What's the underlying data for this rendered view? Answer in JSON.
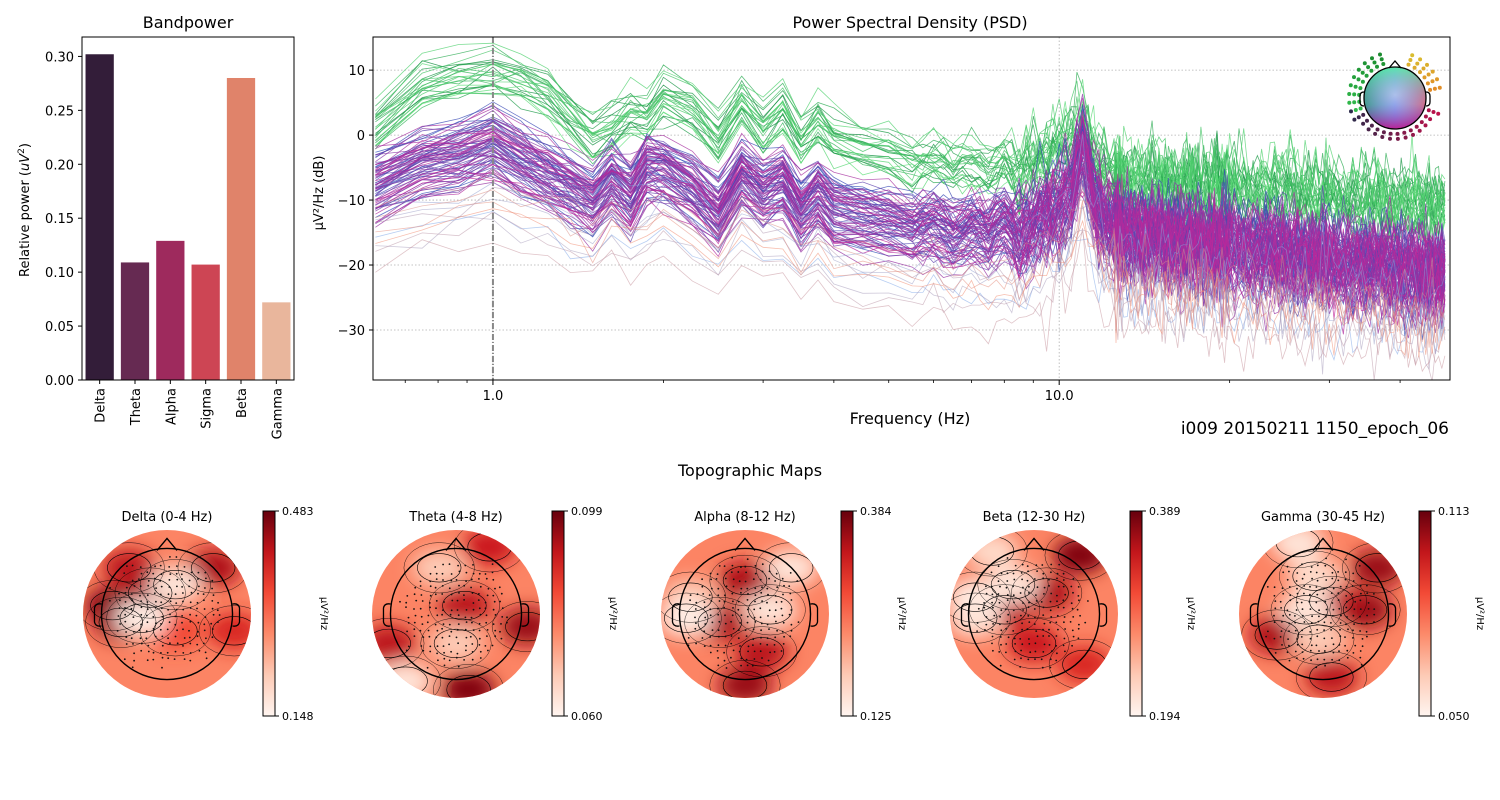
{
  "chart_data": [
    {
      "id": "bandpower",
      "type": "bar",
      "title": "Bandpower",
      "xlabel": "",
      "ylabel": "Relative power (uV²)",
      "categories": [
        "Delta",
        "Theta",
        "Alpha",
        "Sigma",
        "Beta",
        "Gamma"
      ],
      "values": [
        0.302,
        0.109,
        0.129,
        0.107,
        0.28,
        0.072
      ],
      "colors": [
        "#331d39",
        "#662a52",
        "#9e2a5d",
        "#cd4554",
        "#e0836a",
        "#e9b69c"
      ],
      "ylim": [
        0,
        0.318
      ],
      "yticks": [
        0.0,
        0.05,
        0.1,
        0.15,
        0.2,
        0.25,
        0.3
      ],
      "ytick_labels": [
        "0.00",
        "0.05",
        "0.10",
        "0.15",
        "0.20",
        "0.25",
        "0.30"
      ],
      "grid": false
    },
    {
      "id": "psd",
      "type": "line",
      "title": "Power Spectral Density (PSD)",
      "xlabel": "Frequency (Hz)",
      "ylabel": "µV²/Hz (dB)",
      "xscale": "log",
      "xlim": [
        0.614,
        49
      ],
      "ylim": [
        -37.7,
        15.1
      ],
      "xticks": [
        1.0,
        10.0
      ],
      "xtick_labels": [
        "1.0",
        "10.0"
      ],
      "xminor_ticks": [
        0.7,
        0.8,
        0.9,
        2,
        3,
        4,
        5,
        6,
        7,
        8,
        9,
        20,
        30,
        40
      ],
      "yticks": [
        10,
        0,
        -10,
        -20,
        -30
      ],
      "ytick_labels": [
        "10",
        "0",
        "−10",
        "−20",
        "−30"
      ],
      "grid": true,
      "vline_hz": 1.0,
      "legend": "sensor-position inset, top-right",
      "annotation": "i009 20150211 1150_epoch_06",
      "x": [
        0.62,
        0.75,
        0.87,
        1.0,
        1.12,
        1.25,
        1.37,
        1.5,
        1.62,
        1.75,
        1.87,
        2.0,
        2.25,
        2.5,
        2.75,
        3.0,
        3.25,
        3.5,
        3.75,
        4.0,
        4.5,
        5.0,
        5.5,
        6.0,
        6.5,
        7.0,
        7.5,
        8.0,
        8.5,
        9.0,
        9.5,
        10.0,
        10.5,
        11.0,
        11.5,
        12.0,
        12.5,
        13.0,
        14.0,
        15.0,
        16.0,
        17.0,
        18.0,
        19.0,
        20.0,
        22.0,
        24.0,
        26.0,
        28.0,
        30.0,
        33.0,
        36.0,
        39.0,
        42.0,
        45.0,
        48.0
      ],
      "series": [
        {
          "name": "left-frontal (green)",
          "color_range": [
            "#0b8a3a",
            "#5fe07a"
          ],
          "count": 26,
          "spread": 2.2,
          "values": [
            0.5,
            6.5,
            8.0,
            8.8,
            7.5,
            5.5,
            2.0,
            -1.5,
            0.0,
            2.5,
            2.0,
            5.0,
            3.0,
            -1.5,
            4.0,
            0.0,
            3.5,
            -2.0,
            1.0,
            -1.5,
            -3.0,
            -3.5,
            -5.0,
            -4.5,
            -6.0,
            -5.0,
            -6.5,
            -4.5,
            -7.0,
            -5.5,
            -4.0,
            -3.0,
            -2.5,
            1.5,
            -4.0,
            -6.0,
            -7.0,
            -7.5,
            -8.0,
            -7.5,
            -8.5,
            -8.0,
            -9.0,
            -8.5,
            -9.0,
            -10.0,
            -9.0,
            -10.0,
            -10.5,
            -10.0,
            -11.0,
            -10.5,
            -11.5,
            -11.0,
            -12.0,
            -11.5
          ]
        },
        {
          "name": "central/posterior (blue-purple-magenta)",
          "color_range": [
            "#2a4fb8",
            "#c0279a"
          ],
          "count": 80,
          "spread": 3.0,
          "values": [
            -7.5,
            -4.0,
            -3.0,
            -1.0,
            -3.5,
            -6.0,
            -8.0,
            -10.0,
            -6.5,
            -9.5,
            -5.0,
            -5.0,
            -8.0,
            -12.0,
            -5.5,
            -8.5,
            -7.0,
            -11.5,
            -9.0,
            -11.5,
            -12.5,
            -13.0,
            -14.0,
            -13.5,
            -15.0,
            -14.0,
            -15.0,
            -13.0,
            -15.5,
            -13.5,
            -12.0,
            -11.0,
            -9.0,
            -1.5,
            -9.0,
            -13.0,
            -14.0,
            -15.0,
            -16.0,
            -15.5,
            -16.5,
            -16.0,
            -17.5,
            -17.0,
            -17.0,
            -18.0,
            -17.5,
            -18.5,
            -19.0,
            -19.0,
            -20.0,
            -19.5,
            -20.5,
            -21.0,
            -21.5,
            -21.0
          ]
        },
        {
          "name": "temporal outliers (light blue / salmon)",
          "color_range": [
            "#7ea6e8",
            "#f08a70"
          ],
          "count": 12,
          "spread": 3.5,
          "values": [
            -15.0,
            -13.5,
            -12.5,
            -10.5,
            -12.5,
            -13.5,
            -16.0,
            -17.5,
            -14.0,
            -16.5,
            -15.0,
            -13.5,
            -17.0,
            -19.0,
            -14.0,
            -16.5,
            -17.0,
            -20.0,
            -18.0,
            -20.5,
            -21.5,
            -22.0,
            -23.5,
            -22.0,
            -24.0,
            -23.0,
            -24.5,
            -23.0,
            -25.0,
            -23.0,
            -21.0,
            -19.0,
            -17.0,
            -10.0,
            -19.0,
            -22.0,
            -23.0,
            -24.0,
            -25.0,
            -24.5,
            -25.5,
            -25.0,
            -26.0,
            -25.5,
            -26.0,
            -27.0,
            -26.5,
            -27.0,
            -28.0,
            -27.5,
            -28.0,
            -28.5,
            -29.0,
            -29.5,
            -30.0,
            -29.0
          ]
        }
      ]
    },
    {
      "id": "topomaps",
      "type": "heatmap",
      "title": "Topographic Maps",
      "colormap": "Reds",
      "colorbar_label": "µV²/Hz",
      "maps": [
        {
          "title": "Delta (0-4 Hz)",
          "vmin": 0.148,
          "vmax": 0.483,
          "vmin_label": "0.148",
          "vmax_label": "0.483",
          "hotspots": [
            [
              -0.65,
              0.1,
              0.95
            ],
            [
              -0.45,
              0.55,
              0.8
            ],
            [
              0.55,
              0.55,
              0.85
            ],
            [
              0.1,
              -0.2,
              0.6
            ],
            [
              -0.55,
              -0.1,
              0.9
            ],
            [
              0.8,
              -0.2,
              0.7
            ],
            [
              -0.2,
              0.25,
              0.85
            ],
            [
              0.1,
              0.35,
              0.1
            ],
            [
              -0.3,
              -0.05,
              0.05
            ]
          ]
        },
        {
          "title": "Theta (4-8 Hz)",
          "vmin": 0.06,
          "vmax": 0.099,
          "vmin_label": "0.060",
          "vmax_label": "0.099",
          "hotspots": [
            [
              0.1,
              0.1,
              0.8
            ],
            [
              0.85,
              -0.15,
              0.9
            ],
            [
              0.15,
              -0.9,
              0.95
            ],
            [
              -0.8,
              -0.35,
              0.8
            ],
            [
              0.4,
              0.8,
              0.75
            ],
            [
              -0.6,
              -0.8,
              0.1
            ],
            [
              0.0,
              -0.35,
              0.2
            ],
            [
              -0.2,
              0.55,
              0.2
            ]
          ]
        },
        {
          "title": "Alpha (8-12 Hz)",
          "vmin": 0.125,
          "vmax": 0.384,
          "vmin_label": "0.125",
          "vmax_label": "0.384",
          "hotspots": [
            [
              0.0,
              0.4,
              0.85
            ],
            [
              -0.3,
              -0.1,
              0.85
            ],
            [
              0.2,
              -0.45,
              0.8
            ],
            [
              0.0,
              -0.85,
              0.9
            ],
            [
              0.3,
              0.05,
              0.1
            ],
            [
              -0.65,
              0.2,
              0.2
            ],
            [
              -0.7,
              -0.05,
              0.05
            ],
            [
              0.55,
              0.55,
              0.1
            ]
          ]
        },
        {
          "title": "Beta (12-30 Hz)",
          "vmin": 0.194,
          "vmax": 0.389,
          "vmin_label": "0.194",
          "vmax_label": "0.389",
          "hotspots": [
            [
              0.55,
              0.7,
              0.95
            ],
            [
              0.15,
              0.25,
              0.85
            ],
            [
              0.0,
              -0.35,
              0.75
            ],
            [
              -0.35,
              0.05,
              0.8
            ],
            [
              -0.7,
              0.2,
              0.05
            ],
            [
              -0.7,
              -0.05,
              0.1
            ],
            [
              -0.25,
              0.35,
              0.1
            ],
            [
              0.6,
              -0.6,
              0.7
            ],
            [
              -0.5,
              0.75,
              0.15
            ]
          ]
        },
        {
          "title": "Gamma (30-45 Hz)",
          "vmin": 0.05,
          "vmax": 0.113,
          "vmin_label": "0.050",
          "vmax_label": "0.113",
          "hotspots": [
            [
              0.65,
              0.55,
              0.9
            ],
            [
              0.5,
              0.05,
              0.9
            ],
            [
              -0.55,
              -0.25,
              0.85
            ],
            [
              0.1,
              -0.75,
              0.8
            ],
            [
              0.1,
              0.15,
              0.8
            ],
            [
              -0.3,
              0.85,
              0.1
            ],
            [
              -0.2,
              0.05,
              0.1
            ],
            [
              -0.05,
              -0.3,
              0.2
            ],
            [
              -0.1,
              0.45,
              0.15
            ]
          ]
        }
      ]
    }
  ]
}
